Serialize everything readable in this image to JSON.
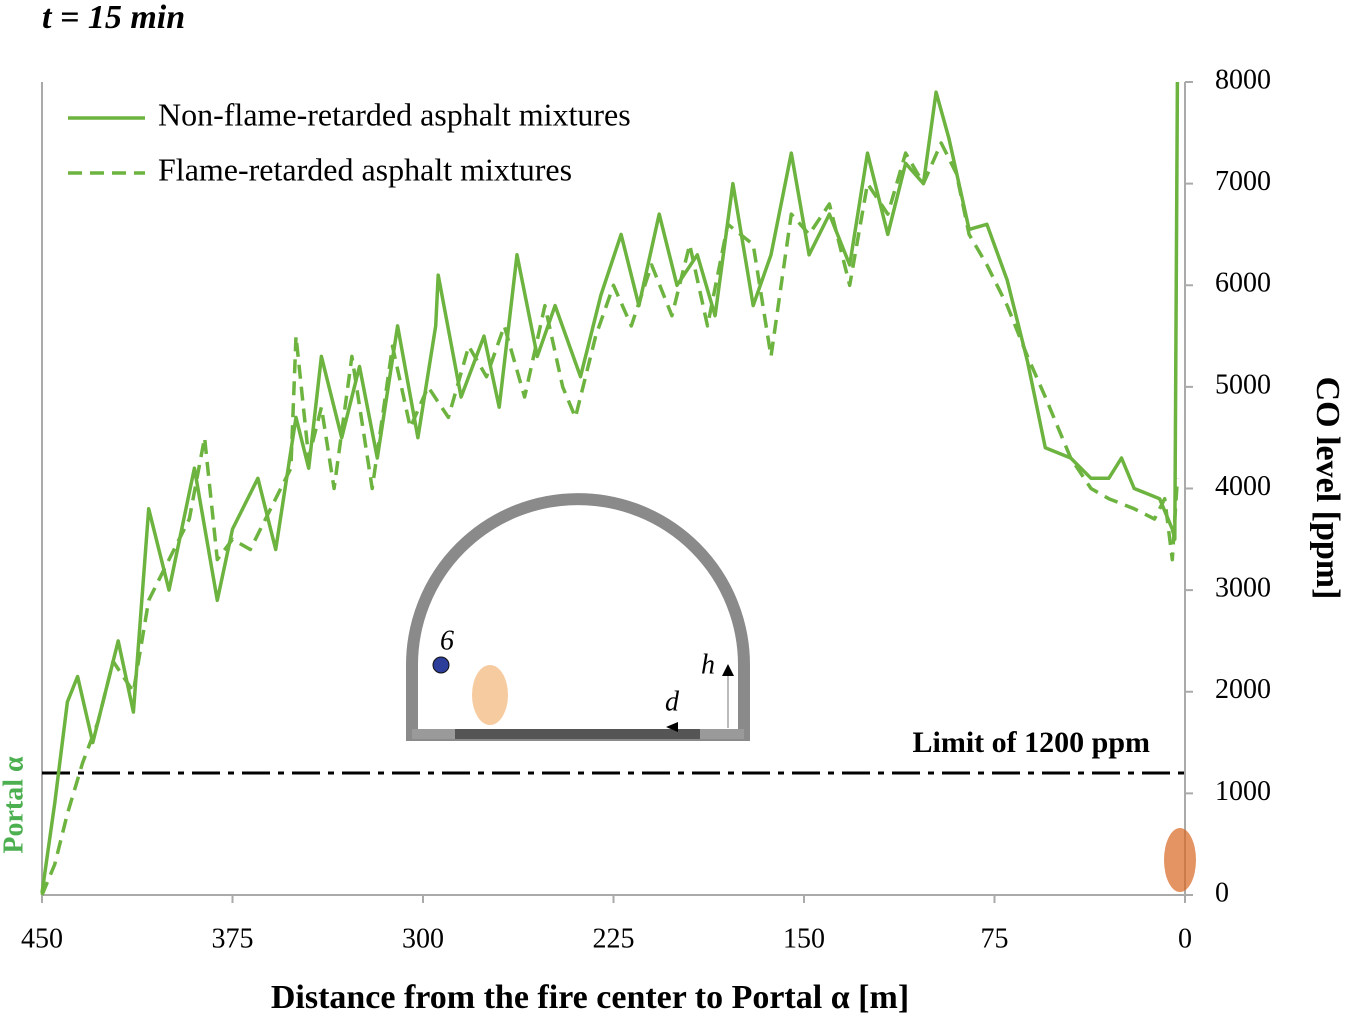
{
  "chart_data": {
    "type": "line",
    "title": "t = 15 min",
    "x_label": "Distance from the fire center to Portal α [m]",
    "y_label": "CO level [ppm]",
    "portal_label": "Portal α",
    "xlim": [
      450,
      0
    ],
    "xticks": [
      450,
      375,
      300,
      225,
      150,
      75,
      0
    ],
    "ylim": [
      0,
      8000
    ],
    "yticks": [
      0,
      1000,
      2000,
      3000,
      4000,
      5000,
      6000,
      7000,
      8000
    ],
    "grid": false,
    "legend": "upper-left",
    "hline": {
      "value": 1200,
      "label": "Limit of 1200 ppm"
    },
    "inset_labels": [
      "6",
      "h",
      "d"
    ],
    "series": [
      {
        "name": "Non-flame-retarded asphalt mixtures",
        "color": "#6db33f",
        "linestyle": "solid",
        "x": [
          450,
          445,
          440,
          436,
          430,
          425,
          420,
          414,
          408,
          400,
          390,
          381,
          375,
          365,
          358,
          350,
          345,
          340,
          332,
          325,
          318,
          310,
          302,
          295,
          294,
          285,
          276,
          270,
          263,
          255,
          248,
          238,
          230,
          222,
          215,
          207,
          200,
          192,
          185,
          178,
          170,
          163,
          155,
          148,
          140,
          132,
          125,
          117,
          110,
          103,
          98,
          93,
          85,
          78,
          70,
          62,
          55,
          45,
          37,
          30,
          25,
          20,
          10,
          5,
          4,
          3
        ],
        "values": [
          20,
          900,
          1900,
          2150,
          1500,
          2000,
          2500,
          1800,
          3800,
          3000,
          4200,
          2900,
          3600,
          4100,
          3400,
          4700,
          4200,
          5300,
          4500,
          5200,
          4300,
          5600,
          4500,
          5600,
          6100,
          4900,
          5500,
          4800,
          6300,
          5300,
          5800,
          5100,
          5900,
          6500,
          5800,
          6700,
          6000,
          6300,
          5700,
          7000,
          5800,
          6300,
          7300,
          6300,
          6700,
          6200,
          7300,
          6500,
          7200,
          7000,
          7900,
          7450,
          6550,
          6600,
          6050,
          5250,
          4400,
          4300,
          4100,
          4100,
          4300,
          4000,
          3900,
          3600,
          3500,
          8000
        ]
      },
      {
        "name": "Flame-retarded asphalt mixtures",
        "color": "#6db33f",
        "linestyle": "dashed",
        "x": [
          450,
          445,
          440,
          434,
          428,
          422,
          414,
          408,
          400,
          392,
          386,
          381,
          375,
          368,
          360,
          352,
          350,
          345,
          340,
          335,
          328,
          320,
          312,
          305,
          298,
          290,
          282,
          275,
          268,
          260,
          252,
          245,
          240,
          232,
          225,
          218,
          210,
          202,
          195,
          188,
          180,
          170,
          163,
          155,
          148,
          140,
          132,
          125,
          117,
          110,
          103,
          96,
          90,
          85,
          78,
          70,
          62,
          55,
          45,
          37,
          30,
          20,
          12,
          8,
          5,
          3
        ],
        "values": [
          0,
          300,
          800,
          1300,
          1700,
          2300,
          2000,
          2900,
          3300,
          3700,
          4500,
          3300,
          3500,
          3400,
          3800,
          4200,
          5500,
          4300,
          4800,
          4000,
          5300,
          4000,
          5400,
          4600,
          5000,
          4700,
          5400,
          5100,
          5600,
          4900,
          5800,
          5000,
          4700,
          5500,
          6000,
          5600,
          6200,
          5700,
          6400,
          5600,
          6600,
          6400,
          5300,
          6700,
          6500,
          6800,
          6000,
          7000,
          6700,
          7300,
          7000,
          7400,
          7100,
          6500,
          6200,
          5800,
          5300,
          4900,
          4300,
          4000,
          3900,
          3800,
          3700,
          3900,
          3300,
          4100
        ]
      }
    ]
  }
}
